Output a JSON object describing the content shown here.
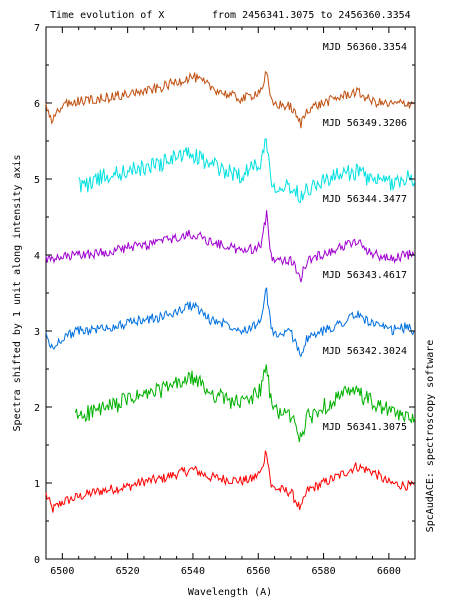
{
  "chart_data": {
    "type": "line",
    "title": "Time evolution of X",
    "subtitle": "from 2456341.3075 to 2456360.3354",
    "xlabel": "Wavelength (A)",
    "ylabel": "Spectra shifted by 1 unit along intensity axis",
    "side_label": "SpcAudACE: spectroscopy software",
    "xlim": [
      6495,
      6608
    ],
    "ylim": [
      0,
      7
    ],
    "xticks": [
      6500,
      6520,
      6540,
      6560,
      6580,
      6600
    ],
    "yticks": [
      0,
      1,
      2,
      3,
      4,
      5,
      6,
      7
    ],
    "grid": false,
    "series": [
      {
        "name": "MJD 56341.3075",
        "color": "#ff0000",
        "offset": 1,
        "x": [
          6495,
          6497,
          6500,
          6505,
          6510,
          6515,
          6520,
          6525,
          6530,
          6535,
          6540,
          6545,
          6550,
          6555,
          6558,
          6561,
          6562.5,
          6564,
          6566,
          6570,
          6573,
          6575,
          6580,
          6585,
          6590,
          6595,
          6600,
          6605,
          6608
        ],
        "y": [
          0.85,
          0.65,
          0.75,
          0.82,
          0.88,
          0.92,
          0.95,
          1.02,
          1.05,
          1.12,
          1.18,
          1.08,
          1.05,
          1.03,
          1.05,
          1.15,
          1.45,
          0.95,
          0.92,
          0.88,
          0.65,
          0.9,
          1.0,
          1.1,
          1.22,
          1.15,
          1.0,
          0.97,
          0.95
        ]
      },
      {
        "name": "MJD 56342.3024",
        "color": "#00b000",
        "offset": 2,
        "x": [
          6504,
          6506,
          6510,
          6515,
          6520,
          6525,
          6530,
          6535,
          6540,
          6545,
          6550,
          6555,
          6558,
          6561,
          6562.5,
          6564,
          6566,
          6570,
          6573,
          6575,
          6580,
          6585,
          6590,
          6595,
          6600,
          6605,
          6608
        ],
        "y": [
          1.88,
          1.9,
          1.95,
          2.0,
          2.1,
          2.15,
          2.22,
          2.3,
          2.38,
          2.2,
          2.1,
          2.05,
          2.12,
          2.25,
          2.55,
          2.02,
          1.95,
          1.88,
          1.6,
          1.85,
          2.0,
          2.15,
          2.2,
          2.05,
          1.95,
          1.85,
          1.9
        ]
      },
      {
        "name": "MJD 56343.4617",
        "color": "#0070e0",
        "offset": 3,
        "x": [
          6495,
          6497,
          6500,
          6505,
          6510,
          6515,
          6520,
          6525,
          6530,
          6535,
          6540,
          6545,
          6550,
          6555,
          6558,
          6561,
          6562.5,
          6564,
          6566,
          6570,
          6573,
          6575,
          6580,
          6585,
          6590,
          6595,
          6600,
          6605,
          6608
        ],
        "y": [
          2.95,
          2.75,
          2.92,
          3.0,
          3.02,
          3.05,
          3.1,
          3.15,
          3.18,
          3.25,
          3.35,
          3.15,
          3.1,
          3.02,
          3.05,
          3.15,
          3.55,
          3.0,
          2.95,
          2.98,
          2.7,
          2.9,
          3.0,
          3.1,
          3.22,
          3.1,
          3.0,
          3.05,
          3.0
        ]
      },
      {
        "name": "MJD 56344.3477",
        "color": "#a000d0",
        "offset": 4,
        "x": [
          6495,
          6497,
          6500,
          6505,
          6510,
          6515,
          6520,
          6525,
          6530,
          6535,
          6540,
          6545,
          6550,
          6555,
          6558,
          6561,
          6562.5,
          6564,
          6566,
          6570,
          6573,
          6575,
          6580,
          6585,
          6590,
          6595,
          6600,
          6605,
          6608
        ],
        "y": [
          3.95,
          3.92,
          3.97,
          4.0,
          4.02,
          4.05,
          4.1,
          4.12,
          4.18,
          4.22,
          4.28,
          4.18,
          4.12,
          4.05,
          4.08,
          4.12,
          4.55,
          3.98,
          3.95,
          3.93,
          3.7,
          3.92,
          4.02,
          4.1,
          4.18,
          4.02,
          3.95,
          4.0,
          4.0
        ]
      },
      {
        "name": "MJD 56349.3206",
        "color": "#00e0e0",
        "offset": 5,
        "x": [
          6505,
          6507,
          6510,
          6515,
          6520,
          6525,
          6530,
          6535,
          6540,
          6545,
          6550,
          6555,
          6558,
          6561,
          6562.5,
          6564,
          6566,
          6570,
          6573,
          6575,
          6580,
          6585,
          6590,
          6595,
          6600,
          6605,
          6608
        ],
        "y": [
          4.95,
          4.9,
          5.0,
          5.05,
          5.1,
          5.15,
          5.2,
          5.3,
          5.32,
          5.2,
          5.1,
          5.05,
          5.15,
          5.25,
          5.55,
          4.95,
          4.92,
          4.9,
          4.78,
          4.88,
          4.98,
          5.05,
          5.1,
          4.98,
          4.95,
          5.0,
          5.02
        ]
      },
      {
        "name": "MJD 56360.3354",
        "color": "#c05010",
        "offset": 6,
        "x": [
          6495,
          6497,
          6500,
          6505,
          6510,
          6515,
          6520,
          6525,
          6530,
          6535,
          6540,
          6545,
          6550,
          6555,
          6558,
          6561,
          6562.5,
          6564,
          6566,
          6570,
          6573,
          6575,
          6580,
          6585,
          6590,
          6595,
          6600,
          6605,
          6608
        ],
        "y": [
          5.95,
          5.75,
          5.98,
          6.02,
          6.05,
          6.08,
          6.12,
          6.15,
          6.2,
          6.28,
          6.35,
          6.22,
          6.12,
          6.05,
          6.1,
          6.18,
          6.4,
          6.0,
          5.98,
          5.95,
          5.72,
          5.92,
          6.0,
          6.08,
          6.15,
          6.02,
          5.98,
          6.0,
          6.0
        ]
      }
    ]
  }
}
